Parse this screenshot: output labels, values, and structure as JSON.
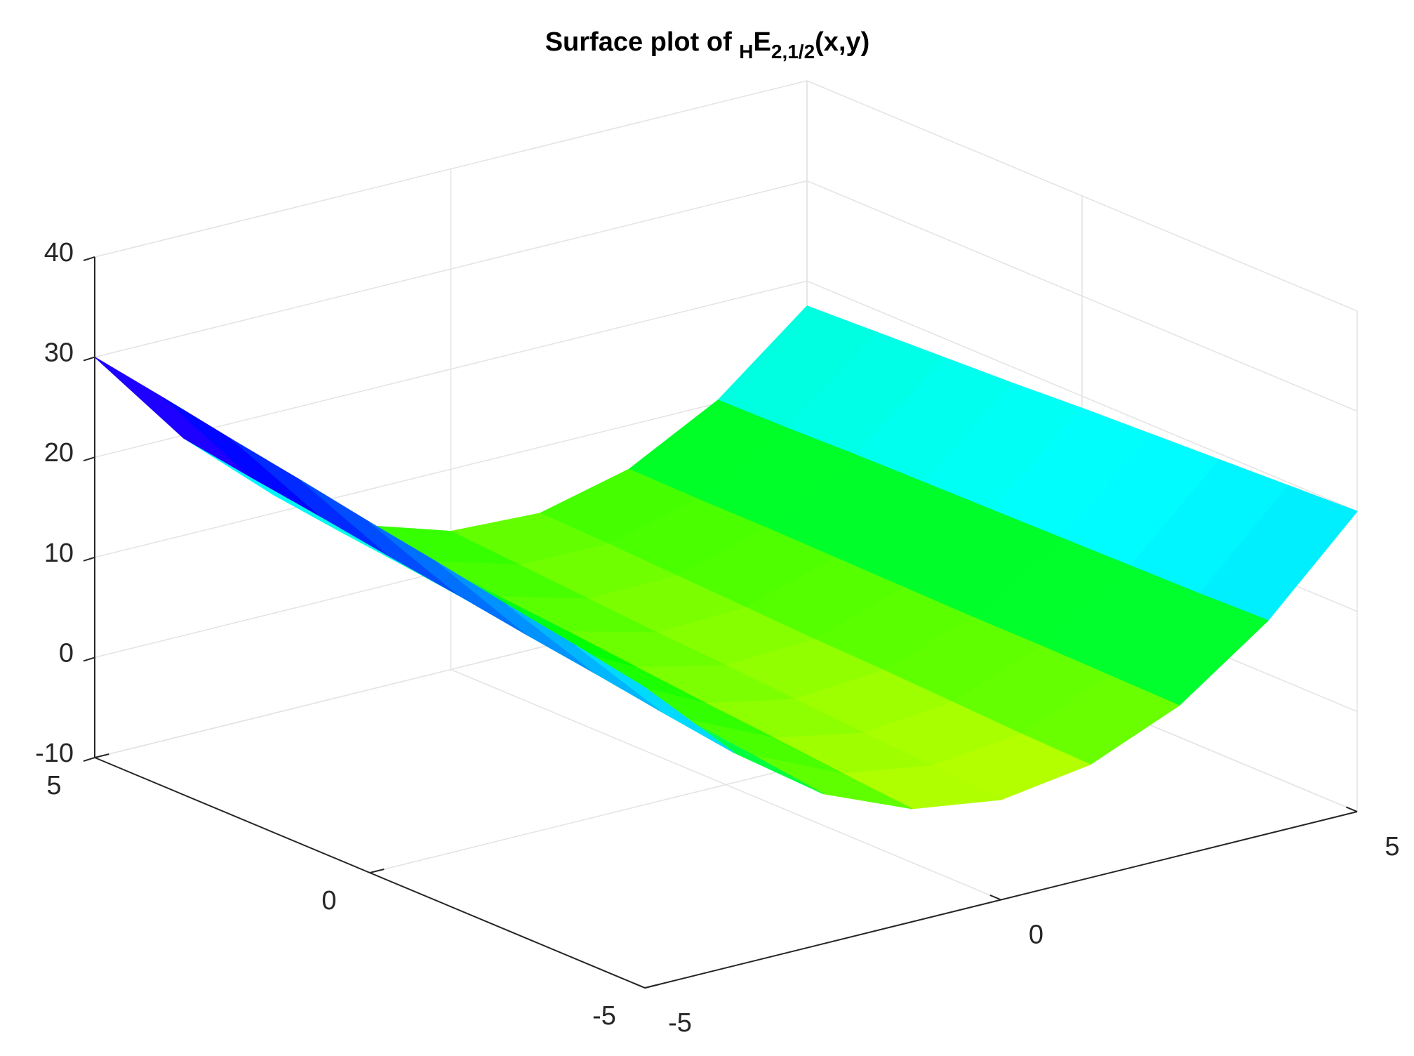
{
  "chart_data": {
    "type": "surface",
    "title": [
      "Surface plot of ",
      "H",
      "E",
      "2,1/2",
      "(x,y)"
    ],
    "x": [
      -5,
      -3.75,
      -2.5,
      -1.25,
      0,
      1.25,
      2.5,
      3.75,
      5
    ],
    "y": [
      -5,
      -3.75,
      -2.5,
      -1.25,
      0,
      1.25,
      2.5,
      3.75,
      5
    ],
    "z": [
      [
        20,
        11.3,
        5,
        1.3,
        0,
        1.3,
        5,
        11.3,
        20
      ],
      [
        21.3,
        12.3,
        5.9,
        1.9,
        0.5,
        1.5,
        5.1,
        11.1,
        19.7
      ],
      [
        22.5,
        13.4,
        6.7,
        2.6,
        0.9,
        1.8,
        5.2,
        11.0,
        19.4
      ],
      [
        23.8,
        14.4,
        7.6,
        3.2,
        1.4,
        2.1,
        5.2,
        10.9,
        19.1
      ],
      [
        25,
        15.5,
        8.4,
        3.9,
        1.9,
        2.3,
        5.3,
        10.8,
        18.8
      ],
      [
        26.3,
        16.5,
        9.3,
        4.6,
        2.3,
        2.6,
        5.4,
        10.7,
        18.4
      ],
      [
        27.5,
        17.6,
        10.2,
        5.2,
        2.8,
        2.9,
        5.5,
        10.6,
        18.1
      ],
      [
        28.8,
        18.6,
        11.0,
        5.9,
        3.3,
        3.2,
        5.5,
        10.4,
        17.8
      ],
      [
        30,
        19.7,
        11.9,
        6.6,
        3.8,
        3.4,
        5.6,
        10.3,
        17.5
      ]
    ],
    "colormap": "hsv",
    "xlim": [
      -5,
      5
    ],
    "ylim": [
      -5,
      5
    ],
    "zlim": [
      -10,
      40
    ],
    "xticks": [
      -5,
      0,
      5
    ],
    "yticks": [
      -5,
      0,
      5
    ],
    "zticks": [
      -10,
      0,
      10,
      20,
      30,
      40
    ],
    "grid": true
  }
}
